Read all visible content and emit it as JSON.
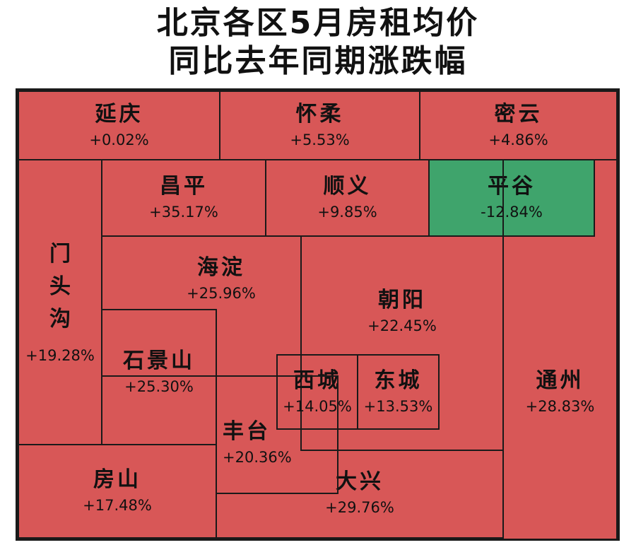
{
  "title": {
    "line1": "北京各区5月房租均价",
    "line2": "同比去年同期涨跌幅"
  },
  "colors": {
    "rise": "#d85757",
    "fall": "#3fa46c",
    "border": "#1a1a1a"
  },
  "regions": [
    {
      "name": "延庆",
      "value": "+0.02%"
    },
    {
      "name": "怀柔",
      "value": "+5.53%"
    },
    {
      "name": "密云",
      "value": "+4.86%"
    },
    {
      "name": "昌平",
      "value": "+35.17%"
    },
    {
      "name": "顺义",
      "value": "+9.85%"
    },
    {
      "name": "平谷",
      "value": "-12.84%"
    },
    {
      "name": "门头沟",
      "value": "+19.28%"
    },
    {
      "name": "海淀",
      "value": "+25.96%"
    },
    {
      "name": "朝阳",
      "value": "+22.45%"
    },
    {
      "name": "石景山",
      "value": "+25.30%"
    },
    {
      "name": "通州",
      "value": "+28.83%"
    },
    {
      "name": "丰台",
      "value": "+20.36%"
    },
    {
      "name": "西城",
      "value": "+14.05%"
    },
    {
      "name": "东城",
      "value": "+13.53%"
    },
    {
      "name": "房山",
      "value": "+17.48%"
    },
    {
      "name": "大兴",
      "value": "+29.76%"
    }
  ]
}
